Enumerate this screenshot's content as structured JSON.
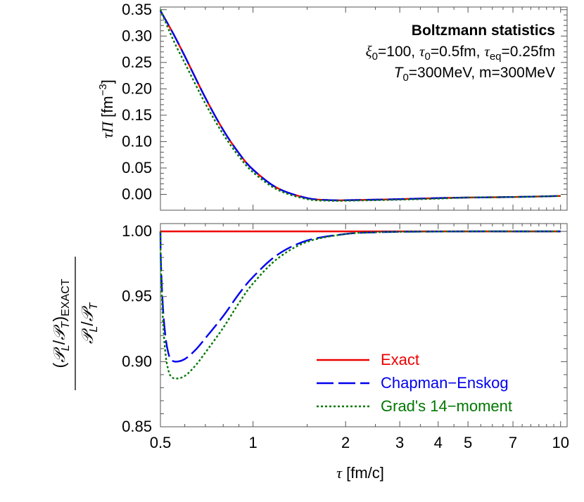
{
  "chart_data": [
    {
      "type": "line",
      "panel": "top",
      "ylabel": "τΠ [fm⁻³]",
      "ylabel_parts": {
        "sym": "τΠ",
        "unit_open": " [fm",
        "unit_exp": "−3",
        "unit_close": "]"
      },
      "xscale": "log",
      "xlim": [
        0.5,
        10.5
      ],
      "ylim": [
        -0.03,
        0.355
      ],
      "yticks": [
        0.0,
        0.05,
        0.1,
        0.15,
        0.2,
        0.25,
        0.3,
        0.35
      ],
      "ytick_labels": [
        "0.00",
        "0.05",
        "0.10",
        "0.15",
        "0.20",
        "0.25",
        "0.30",
        "0.35"
      ],
      "annotations": {
        "title": "Boltzmann statistics",
        "line1": {
          "xi": "ξ",
          "xi_sub": "0",
          "xi_val": "=100, ",
          "tau": "τ",
          "tau_sub": "0",
          "tau_val": "=0.5fm, ",
          "taueq": "τ",
          "taueq_sub": "eq",
          "taueq_val": "=0.25fm"
        },
        "line2": {
          "T": "T",
          "T_sub": "0",
          "T_val": "=300MeV, m=300MeV"
        }
      },
      "x": [
        0.5,
        0.55,
        0.6,
        0.7,
        0.8,
        0.9,
        1.0,
        1.2,
        1.5,
        1.8,
        2.0,
        2.5,
        3.0,
        4.0,
        5.0,
        7.0,
        10.0
      ],
      "series": [
        {
          "name": "Exact",
          "color": "#ee0000",
          "dash": "solid",
          "values": [
            0.348,
            0.305,
            0.262,
            0.183,
            0.122,
            0.078,
            0.047,
            0.012,
            -0.007,
            -0.011,
            -0.011,
            -0.01,
            -0.009,
            -0.007,
            -0.006,
            -0.005,
            -0.003
          ]
        },
        {
          "name": "Chapman−Enskog",
          "color": "#0000ee",
          "dash": "long",
          "values": [
            0.348,
            0.305,
            0.262,
            0.183,
            0.122,
            0.078,
            0.047,
            0.012,
            -0.007,
            -0.011,
            -0.011,
            -0.01,
            -0.009,
            -0.007,
            -0.006,
            -0.005,
            -0.003
          ]
        },
        {
          "name": "Grad's 14−moment",
          "color": "#007700",
          "dash": "dot",
          "values": [
            0.35,
            0.293,
            0.249,
            0.172,
            0.114,
            0.072,
            0.042,
            0.009,
            -0.009,
            -0.012,
            -0.012,
            -0.011,
            -0.01,
            -0.008,
            -0.006,
            -0.005,
            -0.003
          ]
        }
      ]
    },
    {
      "type": "line",
      "panel": "bottom",
      "xlabel": "τ [fm/c]",
      "xlabel_parts": {
        "sym": "τ",
        "rest": " [fm/c]"
      },
      "ylabel_numerator": {
        "p1": "𝒫",
        "s1": "L",
        "slash": "/",
        "p2": "𝒫",
        "s2": "T"
      },
      "ylabel_denominator": {
        "open": "(",
        "p1": "𝒫",
        "s1": "L",
        "slash": "/",
        "p2": "𝒫",
        "s2": "T",
        "close": ")",
        "sub": "EXACT"
      },
      "xscale": "log",
      "xlim": [
        0.5,
        10.5
      ],
      "ylim": [
        0.85,
        1.006
      ],
      "xticks": [
        0.5,
        1,
        2,
        3,
        4,
        5,
        7,
        10
      ],
      "xtick_labels": [
        "0.5",
        "1",
        "2",
        "3",
        "4",
        "5",
        "7",
        "10"
      ],
      "yticks": [
        0.85,
        0.9,
        0.95,
        1.0
      ],
      "ytick_labels": [
        "0.85",
        "0.90",
        "0.95",
        "1.00"
      ],
      "legend_position": "bottom-right",
      "x": [
        0.5,
        0.502,
        0.51,
        0.52,
        0.53,
        0.54,
        0.56,
        0.6,
        0.65,
        0.7,
        0.8,
        0.9,
        1.0,
        1.2,
        1.5,
        2.0,
        2.5,
        3.0,
        4.0,
        5.0,
        7.0,
        10.0
      ],
      "series": [
        {
          "name": "Exact",
          "color": "#ee0000",
          "dash": "solid",
          "values": [
            1.0,
            1.0,
            1.0,
            1.0,
            1.0,
            1.0,
            1.0,
            1.0,
            1.0,
            1.0,
            1.0,
            1.0,
            1.0,
            1.0,
            1.0,
            1.0,
            1.0,
            1.0,
            1.0,
            1.0,
            1.0,
            1.0
          ]
        },
        {
          "name": "Chapman−Enskog",
          "color": "#0000ee",
          "dash": "long",
          "values": [
            1.0,
            0.975,
            0.94,
            0.918,
            0.907,
            0.902,
            0.9,
            0.902,
            0.909,
            0.918,
            0.935,
            0.952,
            0.965,
            0.982,
            0.993,
            0.998,
            0.9993,
            0.9997,
            0.9999,
            1.0,
            1.0,
            1.0
          ]
        },
        {
          "name": "Grad's 14−moment",
          "color": "#007700",
          "dash": "dot",
          "values": [
            1.0,
            0.97,
            0.93,
            0.905,
            0.894,
            0.889,
            0.887,
            0.889,
            0.897,
            0.907,
            0.926,
            0.945,
            0.96,
            0.979,
            0.992,
            0.998,
            0.9993,
            0.9997,
            0.9999,
            1.0,
            1.0,
            1.0
          ]
        }
      ]
    }
  ]
}
